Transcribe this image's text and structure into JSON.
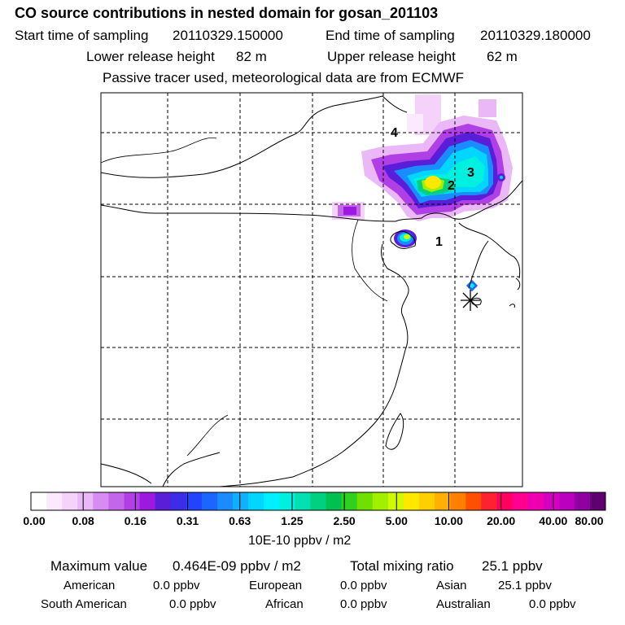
{
  "title": "CO  source contributions in nested domain for gosan_201103",
  "header": {
    "start_label": "Start time of sampling",
    "start_value": "20110329.150000",
    "end_label": "End time of sampling",
    "end_value": "20110329.180000",
    "lower_label": "Lower release height",
    "lower_value": "82 m",
    "upper_label": "Upper release height",
    "upper_value": "62 m",
    "note": "Passive tracer used, meteorological data are from ECMWF"
  },
  "map": {
    "cluster_labels": [
      "1",
      "2",
      "3",
      "4"
    ],
    "receptor_marker": "asterisk"
  },
  "colorbar": {
    "labels": [
      "0.00",
      "0.08",
      "0.16",
      "0.31",
      "0.63",
      "1.25",
      "2.50",
      "5.00",
      "10.00",
      "20.00",
      "40.00",
      "80.00"
    ],
    "colors": [
      "#ffffff",
      "#fbeafd",
      "#f4d2fa",
      "#eab8f6",
      "#d68cf0",
      "#c466ea",
      "#b040e6",
      "#9c1ae0",
      "#5a1ed8",
      "#3c2ee8",
      "#2244ff",
      "#1a66ff",
      "#1a8cff",
      "#10b0ff",
      "#00d6ff",
      "#00f0ff",
      "#00f0e0",
      "#00e0b0",
      "#00d080",
      "#00c050",
      "#30d020",
      "#70e000",
      "#a0f000",
      "#d0f800",
      "#ffe800",
      "#ffd000",
      "#ffb000",
      "#ff8000",
      "#ff5000",
      "#ff2030",
      "#ff0060",
      "#ff0090",
      "#ee00b0",
      "#d800c0",
      "#bc00c0",
      "#9000a0",
      "#600070"
    ],
    "units": "10E-10 ppbv / m2"
  },
  "stats": {
    "max_label": "Maximum value",
    "max_value": "0.464E-09 ppbv / m2",
    "total_label": "Total mixing ratio",
    "total_value": "25.1 ppbv",
    "american_label": "American",
    "american_value": "0.0 ppbv",
    "european_label": "European",
    "european_value": "0.0 ppbv",
    "asian_label": "Asian",
    "asian_value": "25.1 ppbv",
    "southamerican_label": "South American",
    "southamerican_value": "0.0 ppbv",
    "african_label": "African",
    "african_value": "0.0 ppbv",
    "australian_label": "Australian",
    "australian_value": "0.0 ppbv"
  }
}
